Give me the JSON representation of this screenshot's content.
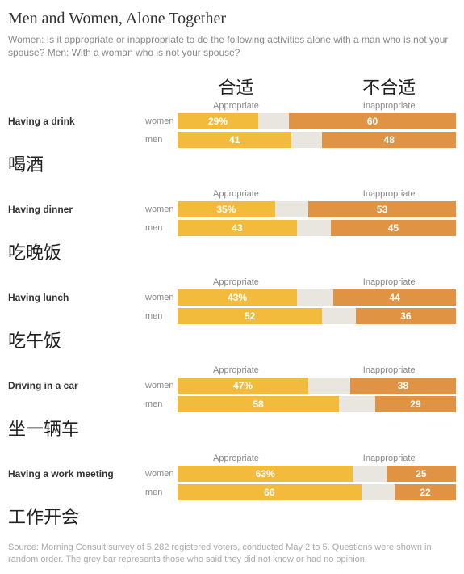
{
  "title": "Men and Women, Alone Together",
  "subtitle": "Women: Is it appropriate or inappropriate to do the following activities alone with a man who is not your spouse? Men: With a woman who is not your spouse?",
  "header": {
    "appropriate_cjk": "合适",
    "appropriate_en": "Appropriate",
    "inappropriate_cjk": "不合适",
    "inappropriate_en": "Inappropriate"
  },
  "colors": {
    "appropriate_women": "#f3bb3b",
    "appropriate_men": "#f3bb3b",
    "inappropriate_women": "#e19344",
    "inappropriate_men": "#e19344",
    "neutral": "#e8e6de",
    "text_title": "#333333",
    "text_muted": "#888888"
  },
  "gender_labels": {
    "women": "women",
    "men": "men"
  },
  "mini_labels": {
    "appropriate": "Appropriate",
    "inappropriate": "Inappropriate"
  },
  "activities": [
    {
      "label_en": "Having a drink",
      "label_cjk": "喝酒",
      "show_mini_header": false,
      "women": {
        "appropriate": 29,
        "appropriate_text": "29%",
        "inappropriate": 60,
        "inappropriate_text": "60"
      },
      "men": {
        "appropriate": 41,
        "appropriate_text": "41",
        "inappropriate": 48,
        "inappropriate_text": "48"
      }
    },
    {
      "label_en": "Having dinner",
      "label_cjk": "吃晚饭",
      "show_mini_header": true,
      "women": {
        "appropriate": 35,
        "appropriate_text": "35%",
        "inappropriate": 53,
        "inappropriate_text": "53"
      },
      "men": {
        "appropriate": 43,
        "appropriate_text": "43",
        "inappropriate": 45,
        "inappropriate_text": "45"
      }
    },
    {
      "label_en": "Having lunch",
      "label_cjk": "吃午饭",
      "show_mini_header": true,
      "women": {
        "appropriate": 43,
        "appropriate_text": "43%",
        "inappropriate": 44,
        "inappropriate_text": "44"
      },
      "men": {
        "appropriate": 52,
        "appropriate_text": "52",
        "inappropriate": 36,
        "inappropriate_text": "36"
      }
    },
    {
      "label_en": "Driving in a car",
      "label_cjk": "坐一辆车",
      "show_mini_header": true,
      "women": {
        "appropriate": 47,
        "appropriate_text": "47%",
        "inappropriate": 38,
        "inappropriate_text": "38"
      },
      "men": {
        "appropriate": 58,
        "appropriate_text": "58",
        "inappropriate": 29,
        "inappropriate_text": "29"
      }
    },
    {
      "label_en": "Having a work meeting",
      "label_cjk": "工作开会",
      "show_mini_header": true,
      "women": {
        "appropriate": 63,
        "appropriate_text": "63%",
        "inappropriate": 25,
        "inappropriate_text": "25"
      },
      "men": {
        "appropriate": 66,
        "appropriate_text": "66",
        "inappropriate": 22,
        "inappropriate_text": "22"
      }
    }
  ],
  "source": "Source: Morning Consult survey of 5,282 registered voters, conducted May 2 to 5. Questions were shown in random order. The grey bar represents those who said they did not know or had no opinion."
}
